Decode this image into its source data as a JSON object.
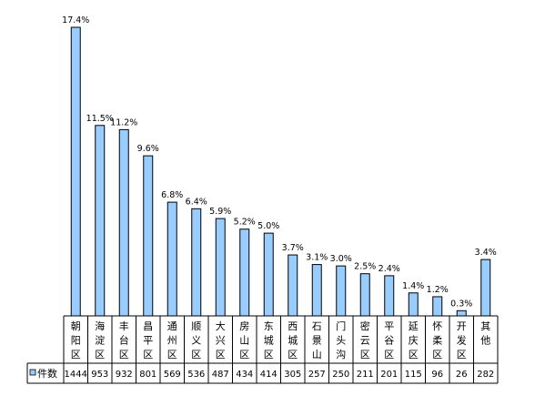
{
  "chart_data": {
    "type": "bar",
    "categories": [
      "朝阳区",
      "海淀区",
      "丰台区",
      "昌平区",
      "通州区",
      "顺义区",
      "大兴区",
      "房山区",
      "东城区",
      "西城区",
      "石景山",
      "门头沟",
      "密云区",
      "平谷区",
      "延庆区",
      "怀柔区",
      "开发区",
      "其他"
    ],
    "series": [
      {
        "name": "件数",
        "values": [
          1444,
          953,
          932,
          801,
          569,
          536,
          487,
          434,
          414,
          305,
          257,
          250,
          211,
          201,
          115,
          96,
          26,
          282
        ],
        "percent_labels": [
          "17.4%",
          "11.5%",
          "11.2%",
          "9.6%",
          "6.8%",
          "6.4%",
          "5.9%",
          "5.2%",
          "5.0%",
          "3.7%",
          "3.1%",
          "3.0%",
          "2.5%",
          "2.4%",
          "1.4%",
          "1.2%",
          "0.3%",
          "3.4%"
        ],
        "color": "#99ccff"
      }
    ],
    "bar_color": "#99ccff",
    "bar_border_color": "#000000",
    "legend_placement": "data-table-row",
    "grid": false,
    "data_table": true
  }
}
